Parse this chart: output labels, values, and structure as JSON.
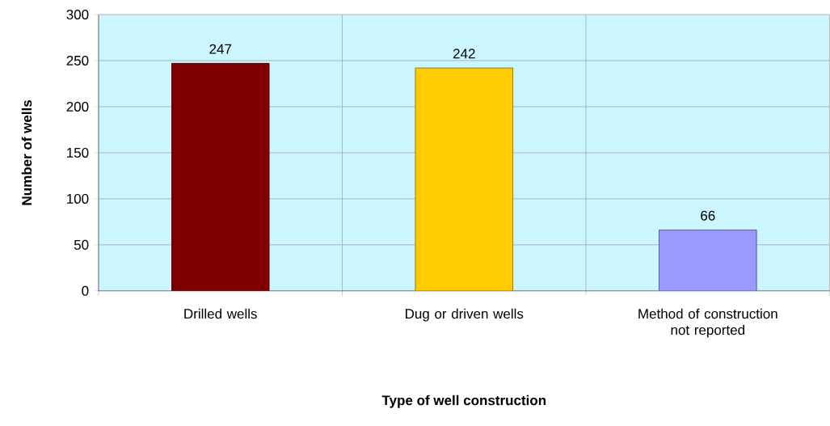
{
  "chart_data": {
    "type": "bar",
    "xlabel": "Type of well construction",
    "ylabel": "Number of wells",
    "categories": [
      "Drilled wells",
      "Dug or driven wells",
      "Method of construction not reported"
    ],
    "values": [
      247,
      242,
      66
    ],
    "colors": [
      "#800000",
      "#ffcc00",
      "#9999ff"
    ],
    "ylim": [
      0,
      300
    ],
    "yticks": [
      0,
      50,
      100,
      150,
      200,
      250,
      300
    ],
    "grid": true,
    "data_labels": true
  }
}
